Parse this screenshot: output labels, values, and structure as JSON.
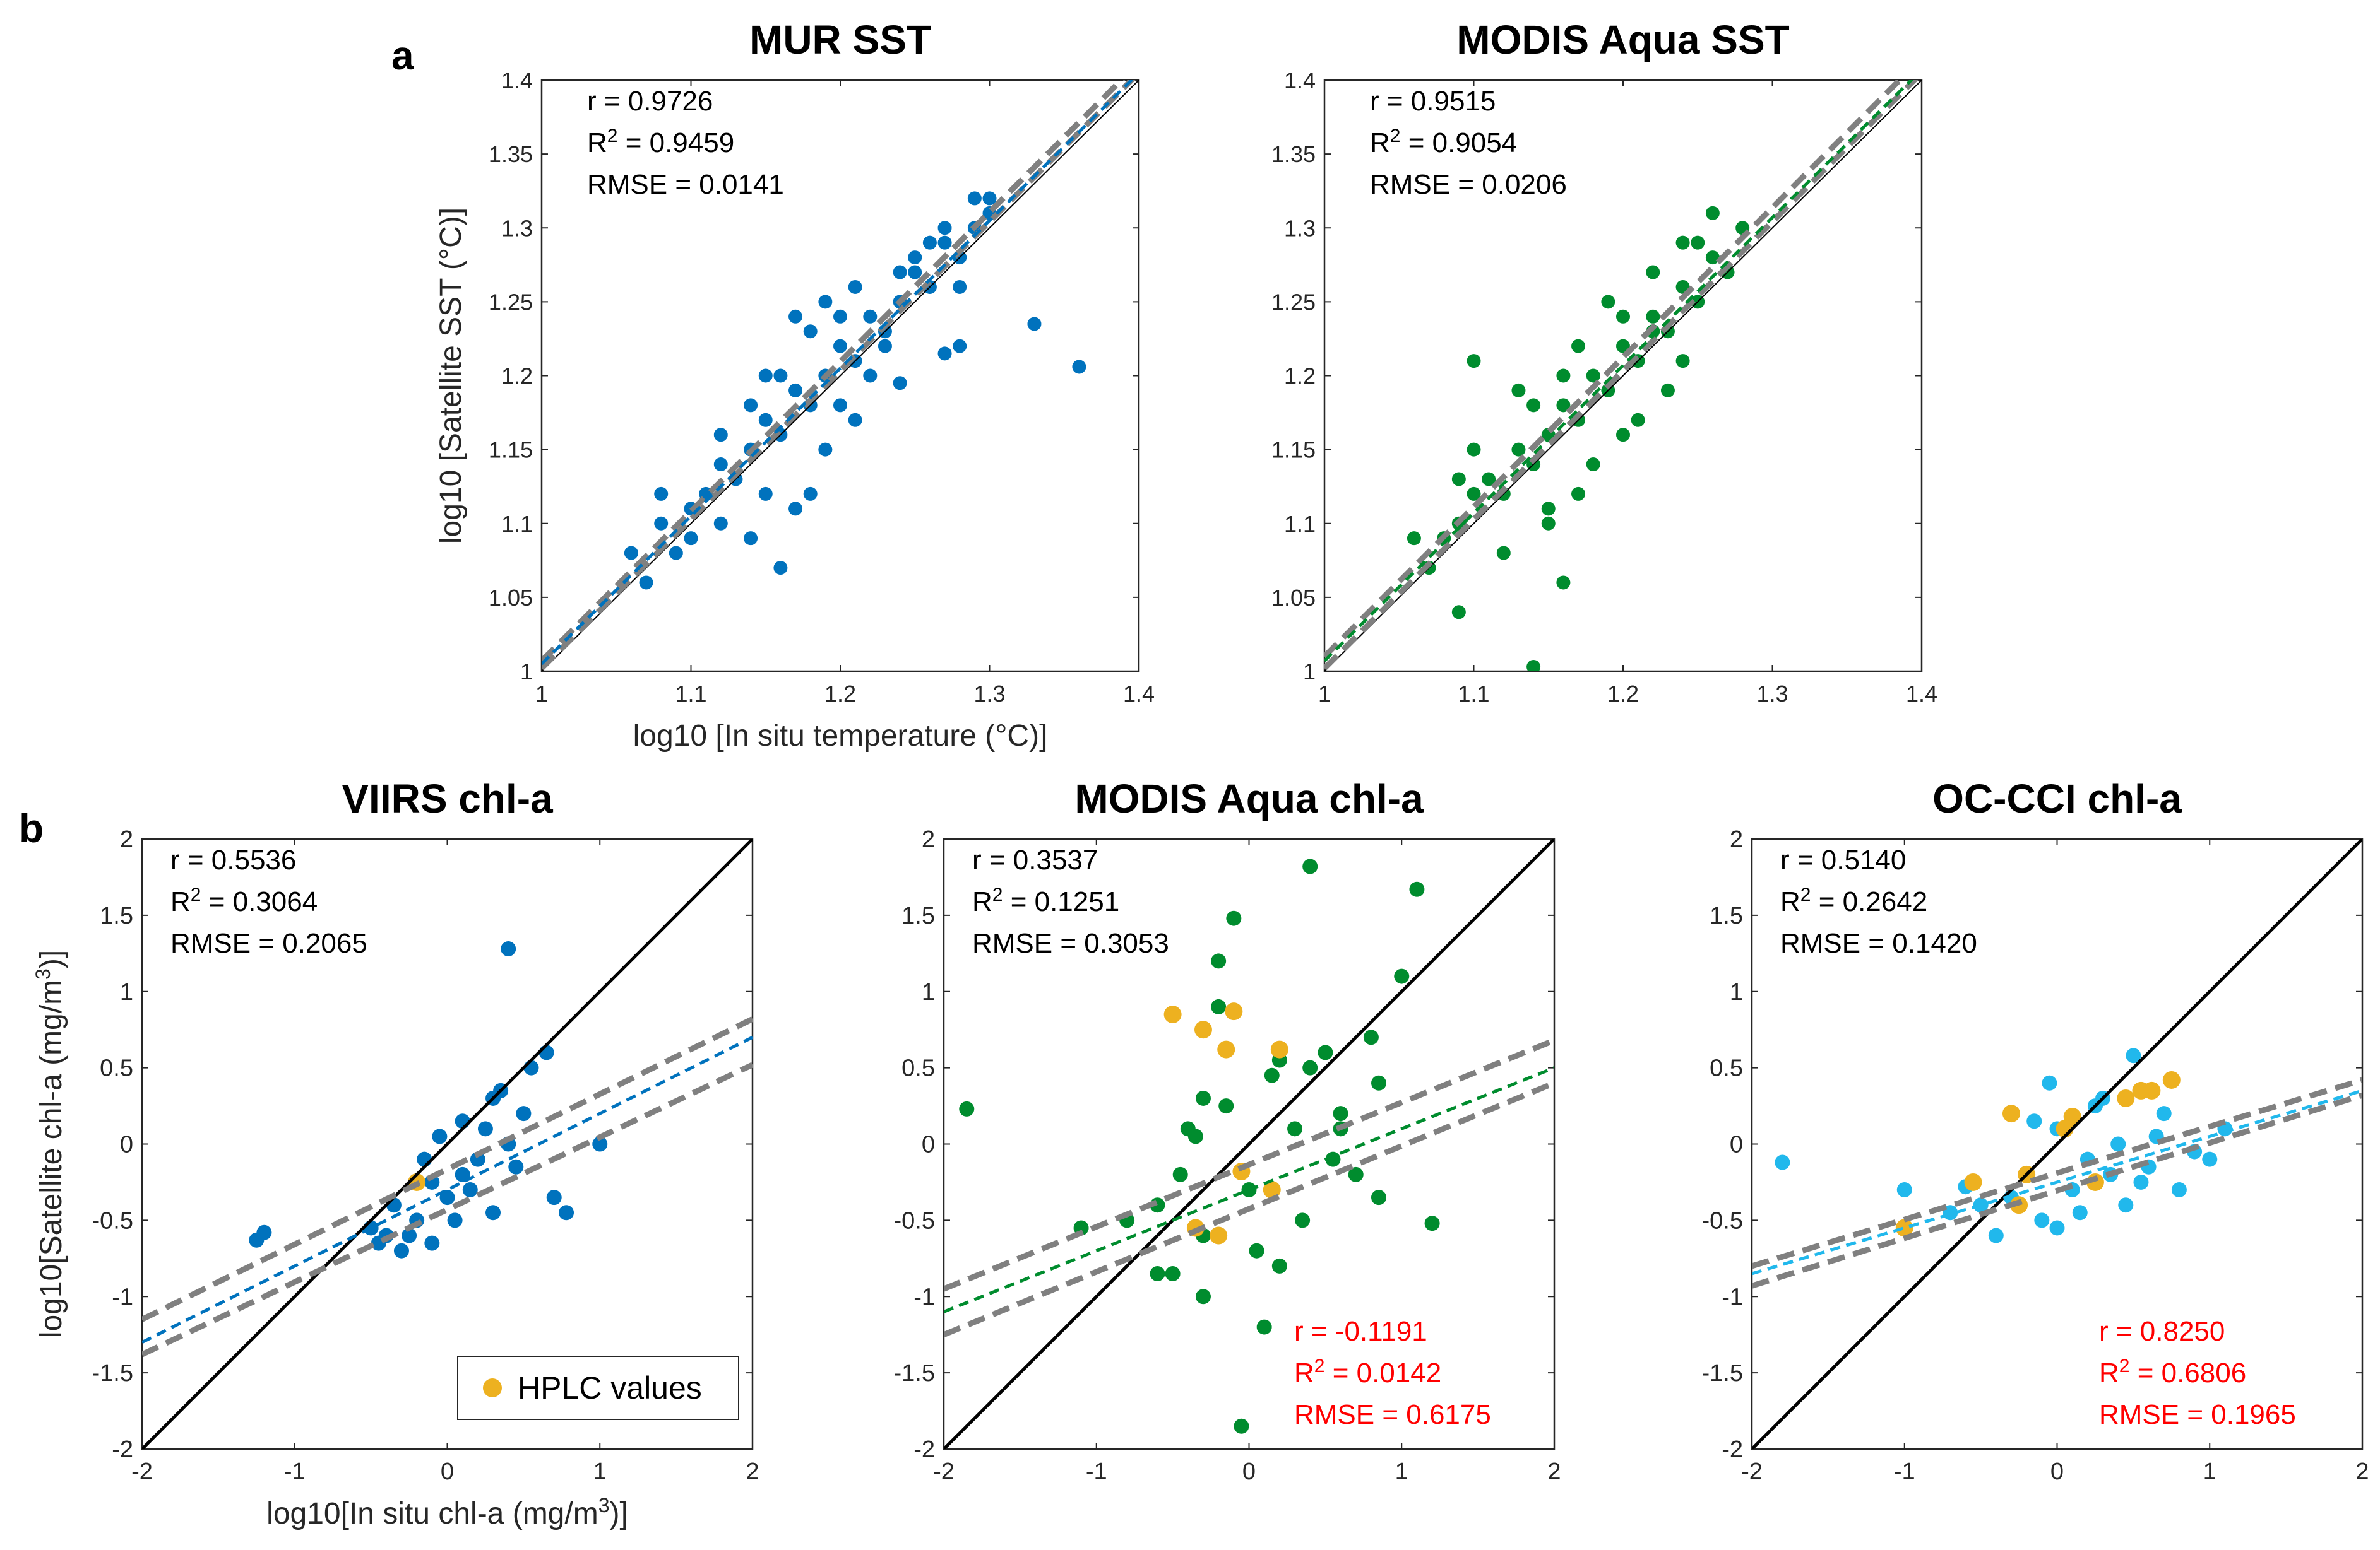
{
  "figure": {
    "panel_labels": {
      "a": "a",
      "b": "b"
    },
    "legend_label": "HPLC values",
    "colors": {
      "mur": "#0072BD",
      "modis": "#008C2E",
      "occci": "#21B8EC",
      "hplc": "#EDB120",
      "ci_line": "#808080",
      "one_to_one": "#000000",
      "red_stats": "#FF0000"
    }
  },
  "chart_data": [
    {
      "id": "mur",
      "type": "scatter",
      "title": "MUR SST",
      "xlabel": "log10 [In situ temperature (°C)]",
      "ylabel": "log10 [Satellite SST (°C)]",
      "xlim": [
        1,
        1.4
      ],
      "ylim": [
        1,
        1.4
      ],
      "xticks": [
        "1",
        "1.1",
        "1.2",
        "1.3",
        "1.4"
      ],
      "yticks": [
        "1",
        "1.05",
        "1.1",
        "1.15",
        "1.2",
        "1.25",
        "1.3",
        "1.35",
        "1.4"
      ],
      "stats": {
        "r": "r = 0.9726",
        "r2_prefix": "R",
        "r2_value": " = 0.9459",
        "rmse": "RMSE = 0.0141"
      },
      "fit": {
        "slope": 1.0,
        "intercept": 0.005
      },
      "ci": [
        {
          "x": [
            1,
            1.4
          ],
          "y": [
            1.002,
            1.405
          ]
        },
        {
          "x": [
            1,
            1.4
          ],
          "y": [
            1.007,
            1.412
          ]
        }
      ],
      "series_color_key": "mur",
      "points_x": [
        1.06,
        1.07,
        1.08,
        1.09,
        1.1,
        1.11,
        1.12,
        1.13,
        1.14,
        1.15,
        1.16,
        1.17,
        1.18,
        1.19,
        1.2,
        1.21,
        1.22,
        1.23,
        1.24,
        1.25,
        1.26,
        1.27,
        1.28,
        1.29,
        1.3,
        1.08,
        1.1,
        1.12,
        1.14,
        1.16,
        1.18,
        1.2,
        1.22,
        1.24,
        1.26,
        1.28,
        1.15,
        1.17,
        1.19,
        1.21,
        1.23,
        1.25,
        1.27,
        1.29,
        1.3,
        1.33,
        1.36,
        1.28,
        1.27,
        1.24,
        1.14,
        1.16,
        1.18,
        1.2,
        1.12,
        1.15,
        1.17,
        1.19,
        1.21
      ],
      "points_y": [
        1.08,
        1.06,
        1.1,
        1.08,
        1.11,
        1.12,
        1.14,
        1.13,
        1.15,
        1.17,
        1.16,
        1.19,
        1.18,
        1.2,
        1.22,
        1.21,
        1.24,
        1.23,
        1.25,
        1.27,
        1.26,
        1.29,
        1.28,
        1.3,
        1.31,
        1.12,
        1.09,
        1.1,
        1.18,
        1.2,
        1.23,
        1.18,
        1.2,
        1.27,
        1.29,
        1.26,
        1.12,
        1.11,
        1.15,
        1.17,
        1.22,
        1.28,
        1.3,
        1.32,
        1.32,
        1.235,
        1.206,
        1.22,
        1.215,
        1.195,
        1.09,
        1.07,
        1.12,
        1.24,
        1.16,
        1.2,
        1.24,
        1.25,
        1.26
      ]
    },
    {
      "id": "modis_sst",
      "type": "scatter",
      "title": "MODIS Aqua SST",
      "xlabel": "",
      "ylabel": "",
      "xlim": [
        1,
        1.4
      ],
      "ylim": [
        1,
        1.4
      ],
      "xticks": [
        "1",
        "1.1",
        "1.2",
        "1.3",
        "1.4"
      ],
      "yticks": [
        "1",
        "1.05",
        "1.1",
        "1.15",
        "1.2",
        "1.25",
        "1.3",
        "1.35",
        "1.4"
      ],
      "stats": {
        "r": "r = 0.9515",
        "r2_prefix": "R",
        "r2_value": " = 0.9054",
        "rmse": "RMSE = 0.0206"
      },
      "fit": {
        "slope": 1.0,
        "intercept": 0.007
      },
      "ci": [
        {
          "x": [
            1,
            1.4
          ],
          "y": [
            1.002,
            1.405
          ]
        },
        {
          "x": [
            1,
            1.4
          ],
          "y": [
            1.01,
            1.415
          ]
        }
      ],
      "series_color_key": "modis",
      "points_x": [
        1.06,
        1.07,
        1.08,
        1.09,
        1.1,
        1.11,
        1.12,
        1.13,
        1.14,
        1.15,
        1.16,
        1.17,
        1.18,
        1.19,
        1.2,
        1.21,
        1.22,
        1.23,
        1.24,
        1.25,
        1.26,
        1.27,
        1.28,
        1.09,
        1.1,
        1.12,
        1.14,
        1.16,
        1.18,
        1.2,
        1.22,
        1.24,
        1.26,
        1.15,
        1.17,
        1.19,
        1.21,
        1.23,
        1.25,
        1.1,
        1.13,
        1.14,
        1.16,
        1.09,
        1.15,
        1.17,
        1.2,
        1.22,
        1.24
      ],
      "points_y": [
        1.09,
        1.07,
        1.09,
        1.1,
        1.12,
        1.13,
        1.12,
        1.15,
        1.14,
        1.16,
        1.18,
        1.17,
        1.2,
        1.19,
        1.22,
        1.21,
        1.24,
        1.23,
        1.26,
        1.25,
        1.28,
        1.27,
        1.3,
        1.04,
        1.21,
        1.08,
        1.18,
        1.06,
        1.14,
        1.16,
        1.23,
        1.29,
        1.31,
        1.1,
        1.12,
        1.25,
        1.17,
        1.19,
        1.29,
        1.15,
        1.19,
        1.003,
        1.2,
        1.13,
        1.11,
        1.22,
        1.24,
        1.27,
        1.21
      ]
    },
    {
      "id": "viirs",
      "type": "scatter",
      "title": "VIIRS chl-a",
      "xlabel": "log10[In situ chl-a (mg/m",
      "xlabel_sup": "3",
      "xlabel_end": ")]",
      "ylabel": "log10[Satellite chl-a (mg/m",
      "ylabel_sup": "3",
      "ylabel_end": ")]",
      "xlim": [
        -2,
        2
      ],
      "ylim": [
        -2,
        2
      ],
      "xticks": [
        "-2",
        "-1",
        "0",
        "1",
        "2"
      ],
      "yticks": [
        "-2",
        "-1.5",
        "-1",
        "-0.5",
        "0",
        "0.5",
        "1",
        "1.5",
        "2"
      ],
      "stats": {
        "r": "r = 0.5536",
        "r2_prefix": "R",
        "r2_value": " = 0.3064",
        "rmse": "RMSE = 0.2065"
      },
      "fit": {
        "slope": 0.5,
        "intercept": -0.3
      },
      "ci": [
        {
          "x": [
            -2,
            2
          ],
          "y": [
            -1.38,
            0.52
          ]
        },
        {
          "x": [
            -2,
            2
          ],
          "y": [
            -1.15,
            0.82
          ]
        }
      ],
      "series_color_key": "mur",
      "points_x": [
        -1.2,
        -1.25,
        -0.5,
        -0.4,
        -0.3,
        -0.2,
        -0.1,
        0,
        0.1,
        0.2,
        0.3,
        0.4,
        0.5,
        0.65,
        0.78,
        1.0,
        0.4,
        -0.35,
        -0.15,
        0.05,
        0.25,
        -0.45,
        0.15,
        -0.05,
        0.35,
        0.55,
        0.7,
        -0.25,
        0.3,
        0.1,
        -0.1,
        0.45
      ],
      "points_y": [
        -0.58,
        -0.63,
        -0.55,
        -0.6,
        -0.7,
        -0.5,
        -0.65,
        -0.35,
        -0.2,
        -0.1,
        0.3,
        0.0,
        0.2,
        0.6,
        -0.45,
        0.0,
        1.28,
        -0.4,
        -0.1,
        -0.5,
        0.1,
        -0.65,
        -0.3,
        0.05,
        0.35,
        0.5,
        -0.35,
        -0.6,
        -0.45,
        0.15,
        -0.25,
        -0.15
      ],
      "hplc_x": [
        -0.2
      ],
      "hplc_y": [
        -0.25
      ],
      "legend": true
    },
    {
      "id": "modis_chl",
      "type": "scatter",
      "title": "MODIS Aqua chl-a",
      "xlabel": "",
      "ylabel": "",
      "xlim": [
        -2,
        2
      ],
      "ylim": [
        -2,
        2
      ],
      "xticks": [
        "-2",
        "-1",
        "0",
        "1",
        "2"
      ],
      "yticks": [
        "-2",
        "-1.5",
        "-1",
        "-0.5",
        "0",
        "0.5",
        "1",
        "1.5",
        "2"
      ],
      "stats": {
        "r": "r = 0.3537",
        "r2_prefix": "R",
        "r2_value": " = 0.1251",
        "rmse": "RMSE = 0.3053"
      },
      "stats2": {
        "r": "r = -0.1191",
        "r2_prefix": "R",
        "r2_value": " = 0.0142",
        "rmse": "RMSE = 0.6175"
      },
      "fit": {
        "slope": 0.4,
        "intercept": -0.3
      },
      "ci": [
        {
          "x": [
            -2,
            2
          ],
          "y": [
            -1.25,
            0.4
          ]
        },
        {
          "x": [
            -2,
            2
          ],
          "y": [
            -0.95,
            0.68
          ]
        }
      ],
      "series_color_key": "modis",
      "points_x": [
        -1.85,
        -1.1,
        -0.8,
        -0.6,
        -0.5,
        -0.4,
        -0.3,
        -0.2,
        -0.1,
        0,
        0.1,
        0.2,
        0.3,
        0.4,
        0.5,
        0.6,
        0.7,
        0.85,
        1.0,
        1.2,
        1.1,
        0.4,
        -0.05,
        -0.2,
        -0.3,
        0.2,
        0.55,
        0.85,
        -0.45,
        0.35,
        -0.3,
        0.15,
        -0.15,
        0.05,
        0.6,
        0.8,
        -0.6,
        -0.35
      ],
      "points_y": [
        0.23,
        -0.55,
        -0.5,
        -0.4,
        -0.85,
        0.1,
        -0.6,
        0.9,
        1.48,
        -0.3,
        -1.2,
        0.55,
        0.1,
        1.82,
        0.6,
        0.2,
        -0.2,
        0.4,
        1.1,
        -0.52,
        1.67,
        0.5,
        -1.85,
        1.2,
        0.3,
        -0.8,
        -0.1,
        -0.35,
        -0.2,
        -0.5,
        -1.0,
        0.45,
        0.25,
        -0.7,
        0.1,
        0.7,
        -0.85,
        0.05
      ],
      "hplc_x": [
        -0.5,
        -0.3,
        -0.1,
        0.2,
        -0.15,
        0.15,
        -0.35,
        -0.2,
        -0.05
      ],
      "hplc_y": [
        0.85,
        0.75,
        0.87,
        0.62,
        0.62,
        -0.3,
        -0.55,
        -0.6,
        -0.18
      ],
      "legend": false
    },
    {
      "id": "occci",
      "type": "scatter",
      "title": "OC-CCI chl-a",
      "xlabel": "",
      "ylabel": "",
      "xlim": [
        -2,
        2
      ],
      "ylim": [
        -2,
        2
      ],
      "xticks": [
        "-2",
        "-1",
        "0",
        "1",
        "2"
      ],
      "yticks": [
        "-2",
        "-1.5",
        "-1",
        "-0.5",
        "0",
        "0.5",
        "1",
        "1.5",
        "2"
      ],
      "stats": {
        "r": "r = 0.5140",
        "r2_prefix": "R",
        "r2_value": " = 0.2642",
        "rmse": "RMSE = 0.1420"
      },
      "stats2": {
        "r": "r = 0.8250",
        "r2_prefix": "R",
        "r2_value": " = 0.6806",
        "rmse": "RMSE = 0.1965"
      },
      "fit": {
        "slope": 0.3,
        "intercept": -0.25
      },
      "ci": [
        {
          "x": [
            -2,
            2
          ],
          "y": [
            -0.93,
            0.32
          ]
        },
        {
          "x": [
            -2,
            2
          ],
          "y": [
            -0.8,
            0.42
          ]
        }
      ],
      "series_color_key": "occci",
      "points_x": [
        -1.8,
        -1.0,
        -0.7,
        -0.5,
        -0.3,
        -0.2,
        -0.1,
        0,
        0.1,
        0.2,
        0.3,
        0.4,
        0.5,
        0.6,
        0.7,
        0.8,
        1.0,
        1.1,
        -0.4,
        0.0,
        0.25,
        0.45,
        -0.15,
        0.35,
        0.65,
        0.9,
        -0.6,
        0.15,
        -0.05,
        0.55
      ],
      "points_y": [
        -0.12,
        -0.3,
        -0.45,
        -0.4,
        -0.35,
        -0.2,
        -0.5,
        0.1,
        -0.3,
        -0.1,
        0.3,
        0.0,
        0.58,
        -0.15,
        0.2,
        -0.3,
        -0.1,
        0.1,
        -0.6,
        -0.55,
        0.25,
        -0.4,
        0.15,
        -0.2,
        0.05,
        -0.05,
        -0.28,
        -0.45,
        0.4,
        -0.25
      ],
      "hplc_x": [
        -1.0,
        -0.55,
        -0.3,
        -0.25,
        0.1,
        0.45,
        0.55,
        0.62,
        0.75,
        -0.2,
        0.05,
        0.25
      ],
      "hplc_y": [
        -0.55,
        -0.25,
        0.2,
        -0.4,
        0.18,
        0.3,
        0.35,
        0.35,
        0.42,
        -0.2,
        0.1,
        -0.25
      ],
      "legend": false
    }
  ]
}
